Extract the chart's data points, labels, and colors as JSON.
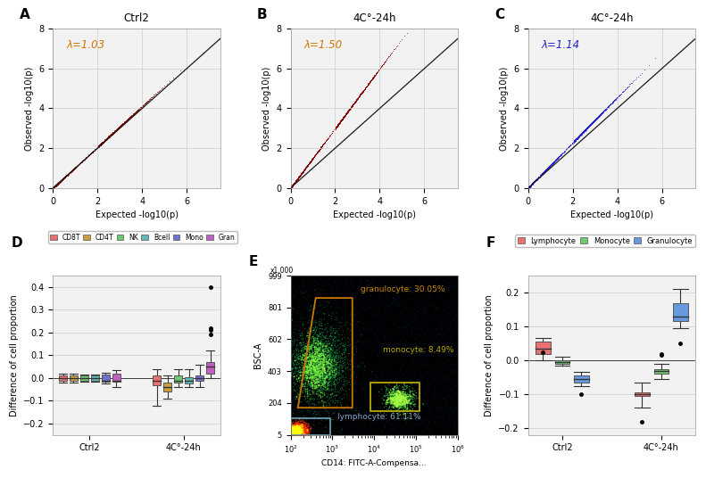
{
  "panel_A": {
    "title": "Ctrl2",
    "lambda_val": "λ=1.03",
    "lambda_color": "#CC7700",
    "dot_color": "#8B0000",
    "line_color": "#1a1a1a",
    "xlim": [
      0,
      7.5
    ],
    "ylim": [
      0,
      8
    ],
    "xlabel": "Expected -log10(p)",
    "ylabel": "Observed -log10(p)",
    "inflation": 1.03
  },
  "panel_B": {
    "title": "4C°-24h",
    "lambda_val": "λ=1.50",
    "lambda_color": "#CC7700",
    "dot_color": "#8B0000",
    "line_color": "#1a1a1a",
    "xlim": [
      0,
      7.5
    ],
    "ylim": [
      0,
      8
    ],
    "xlabel": "Expected -log10(p)",
    "ylabel": "Observed -log10(p)",
    "inflation": 1.5
  },
  "panel_C": {
    "title": "4C°-24h",
    "lambda_val": "λ=1.14",
    "lambda_color": "#2222CC",
    "dot_color": "#2222CC",
    "line_color": "#1a1a1a",
    "xlim": [
      0,
      7.5
    ],
    "ylim": [
      0,
      8
    ],
    "xlabel": "Expected -log10(p)",
    "ylabel": "Observed -log10(p)",
    "inflation": 1.14
  },
  "panel_D": {
    "ylabel": "Difference of cell proportion",
    "ylim": [
      -0.25,
      0.45
    ],
    "groups": [
      "Ctrl2",
      "4C°-24h"
    ],
    "cell_types": [
      "CD8T",
      "CD4T",
      "NK",
      "Bcell",
      "Mono",
      "Gran"
    ],
    "colors": [
      "#E87070",
      "#C8A040",
      "#70C870",
      "#60B8B8",
      "#7070D0",
      "#C060C0"
    ],
    "ctrl_medians": [
      0.0,
      0.0,
      0.0,
      0.0,
      -0.01,
      -0.01
    ],
    "ctrl_q1": [
      -0.01,
      -0.01,
      -0.01,
      -0.01,
      -0.015,
      -0.015
    ],
    "ctrl_q3": [
      0.01,
      0.01,
      0.01,
      0.01,
      0.015,
      0.02
    ],
    "ctrl_whislo": [
      -0.02,
      -0.02,
      -0.015,
      -0.015,
      -0.025,
      -0.04
    ],
    "ctrl_whishi": [
      0.02,
      0.02,
      0.015,
      0.015,
      0.025,
      0.035
    ],
    "cold_medians": [
      -0.01,
      -0.04,
      -0.01,
      -0.01,
      0.0,
      0.05
    ],
    "cold_q1": [
      -0.03,
      -0.06,
      -0.02,
      -0.025,
      -0.01,
      0.02
    ],
    "cold_q3": [
      0.01,
      -0.02,
      0.01,
      0.005,
      0.01,
      0.07
    ],
    "cold_whislo": [
      -0.12,
      -0.09,
      -0.04,
      -0.04,
      -0.04,
      0.0
    ],
    "cold_whishi": [
      0.04,
      0.01,
      0.04,
      0.04,
      0.06,
      0.12
    ],
    "cold_fliers_gran": [
      0.19,
      0.21,
      0.22,
      0.4
    ]
  },
  "panel_E": {
    "xlabel": "CD14: FITC-A-Compensa...",
    "ylabel": "BSC-A",
    "ytick_labels": [
      "5",
      "204",
      "403",
      "602",
      "801",
      "999"
    ],
    "ytick_vals": [
      5,
      204,
      403,
      602,
      801,
      999
    ],
    "gran_label": "granulocyte: 30.05%",
    "mono_label": "monocyte: 8.49%",
    "lymph_label": "lymphocyte: 61.11%"
  },
  "panel_F": {
    "ylabel": "Difference of cell proportion",
    "ylim": [
      -0.22,
      0.25
    ],
    "groups": [
      "Ctrl2",
      "4C°-24h"
    ],
    "cell_types": [
      "Lymphocyte",
      "Monocyte",
      "Granulocyte"
    ],
    "colors": [
      "#E87070",
      "#70C870",
      "#6699DD"
    ],
    "ctrl_medians": [
      0.035,
      -0.005,
      -0.055
    ],
    "ctrl_q1": [
      0.02,
      -0.01,
      -0.065
    ],
    "ctrl_q3": [
      0.055,
      0.0,
      -0.045
    ],
    "ctrl_whislo": [
      0.0,
      -0.015,
      -0.075
    ],
    "ctrl_whishi": [
      0.065,
      0.01,
      -0.035
    ],
    "ctrl_fliers": [
      [
        0.025
      ],
      [],
      [
        -0.1
      ]
    ],
    "cold_medians": [
      -0.1,
      -0.03,
      0.13
    ],
    "cold_q1": [
      -0.105,
      -0.04,
      0.115
    ],
    "cold_q3": [
      -0.095,
      -0.025,
      0.17
    ],
    "cold_whislo": [
      -0.14,
      -0.055,
      0.095
    ],
    "cold_whishi": [
      -0.065,
      -0.01,
      0.21
    ],
    "cold_fliers": [
      [
        -0.18
      ],
      [
        0.015,
        0.02
      ],
      [
        0.05
      ]
    ]
  },
  "background_color": "#ffffff",
  "plot_bg": "#f2f2f2",
  "grid_color": "#cccccc"
}
